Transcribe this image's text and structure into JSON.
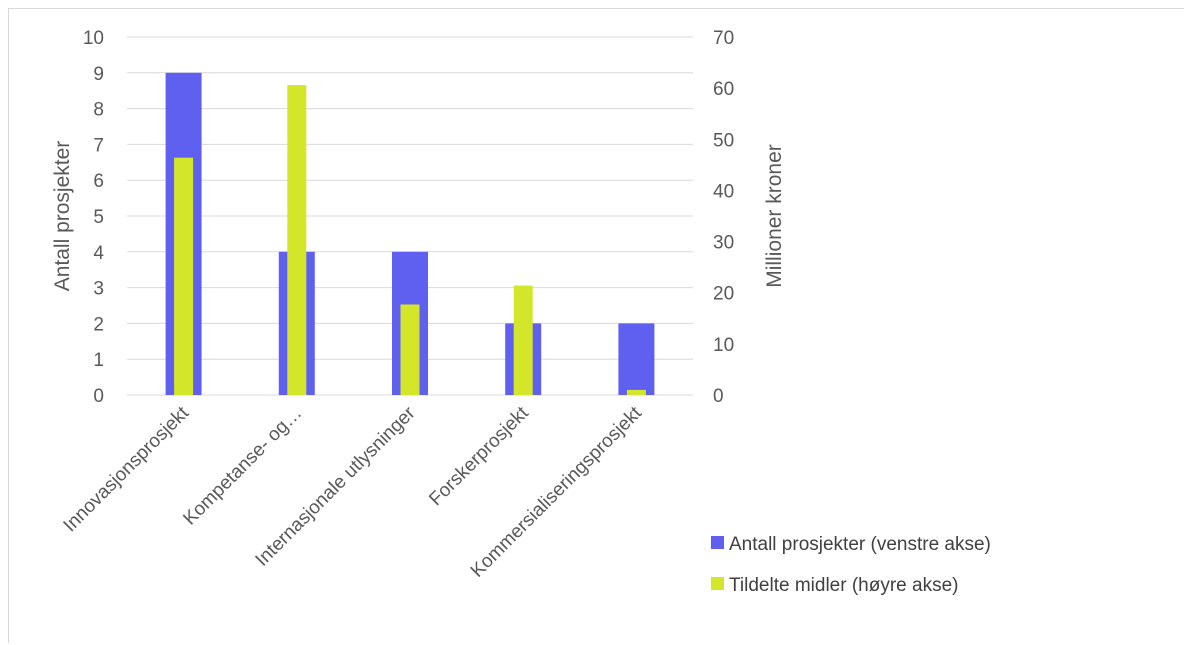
{
  "chart_data": {
    "type": "bar",
    "categories": [
      "Innovasjonsprosjekt",
      "Kompetanse- og…",
      "Internasjonale utlysninger",
      "Forskerprosjekt",
      "Kommersialiseringsprosjekt"
    ],
    "series": [
      {
        "name": "Antall prosjekter (venstre akse)",
        "axis": "left",
        "color": "#6060f0",
        "values": [
          9,
          4,
          4,
          2,
          2
        ]
      },
      {
        "name": "Tildelte midler (høyre akse)",
        "axis": "right",
        "color": "#d4e62a",
        "values": [
          46.4,
          60.6,
          17.7,
          21.4,
          1.0
        ]
      }
    ],
    "ylabel_left": "Antall prosjekter",
    "ylabel_right": "Millioner kroner",
    "ylim_left": [
      0,
      10
    ],
    "ylim_right": [
      0,
      70
    ],
    "yticks_left": [
      "0",
      "1",
      "2",
      "3",
      "4",
      "5",
      "6",
      "7",
      "8",
      "9",
      "10"
    ],
    "yticks_right": [
      "0",
      "10",
      "20",
      "30",
      "40",
      "50",
      "60",
      "70"
    ],
    "grid": true,
    "legend_position": "bottom-right"
  }
}
